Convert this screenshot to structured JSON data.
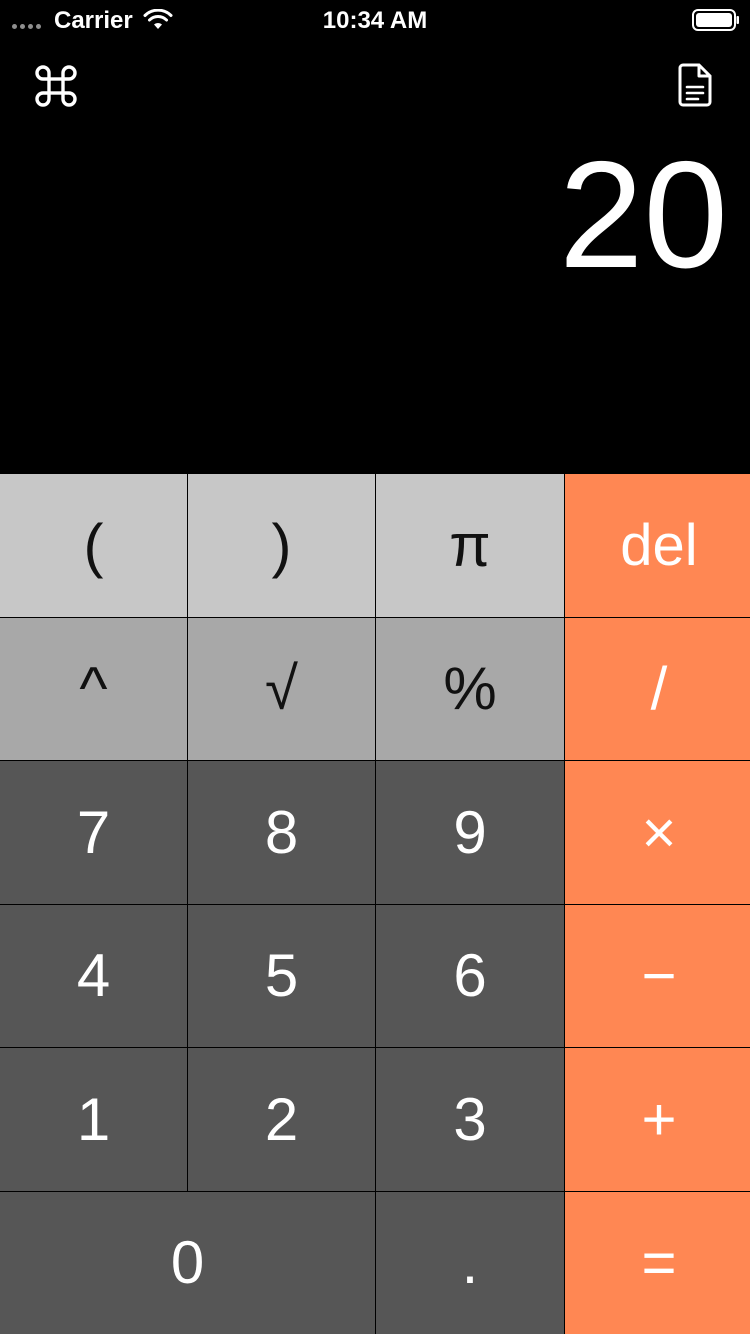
{
  "status_bar": {
    "carrier": "Carrier",
    "time": "10:34 AM"
  },
  "toolbar": {
    "left_icon": "command-icon",
    "right_icon": "document-icon"
  },
  "display": {
    "value": "20"
  },
  "keypad": {
    "rows": [
      [
        "(",
        ")",
        "π",
        "del"
      ],
      [
        "^",
        "√",
        "%",
        "/"
      ],
      [
        "7",
        "8",
        "9",
        "×"
      ],
      [
        "4",
        "5",
        "6",
        "−"
      ],
      [
        "1",
        "2",
        "3",
        "+"
      ],
      [
        "0",
        ".",
        "="
      ]
    ]
  },
  "colors": {
    "background": "#000000",
    "function_light": "#c7c7c7",
    "function_medium": "#a8a8a8",
    "number_key": "#565656",
    "operator_key": "#ff8753"
  }
}
